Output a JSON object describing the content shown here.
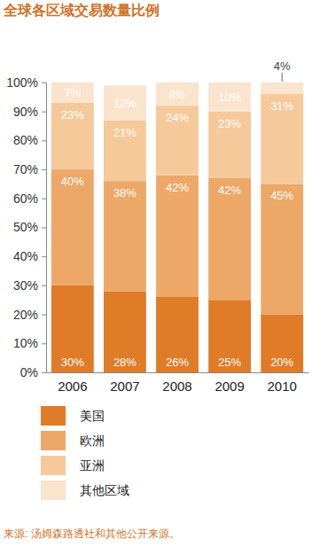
{
  "chart_data": {
    "type": "bar",
    "stacked": true,
    "data_labels": true,
    "grid": false,
    "legend": "bottom-left",
    "title": "全球各区域交易数量比例",
    "source": "来源: 汤姆森路透社和其他公开来源。",
    "categories": [
      "2006",
      "2007",
      "2008",
      "2009",
      "2010"
    ],
    "ylim": [
      0,
      100
    ],
    "yticks": [
      {
        "value": 0,
        "label": "0%"
      },
      {
        "value": 10,
        "label": "10%"
      },
      {
        "value": 20,
        "label": "20%"
      },
      {
        "value": 30,
        "label": "30%"
      },
      {
        "value": 40,
        "label": "40%"
      },
      {
        "value": 50,
        "label": "50%"
      },
      {
        "value": 60,
        "label": "60%"
      },
      {
        "value": 70,
        "label": "70%"
      },
      {
        "value": 80,
        "label": "80%"
      },
      {
        "value": 90,
        "label": "90%"
      },
      {
        "value": 100,
        "label": "100%"
      }
    ],
    "series": [
      {
        "name": "美国",
        "color": "#e07b28",
        "values": [
          30,
          28,
          26,
          25,
          20
        ],
        "value_labels": [
          "30%",
          "28%",
          "26%",
          "25%",
          "20%"
        ]
      },
      {
        "name": "欧洲",
        "color": "#eda867",
        "values": [
          40,
          38,
          42,
          42,
          45
        ],
        "value_labels": [
          "40%",
          "38%",
          "42%",
          "42%",
          "45%"
        ]
      },
      {
        "name": "亚洲",
        "color": "#f6c99b",
        "values": [
          23,
          21,
          24,
          23,
          31
        ],
        "value_labels": [
          "23%",
          "21%",
          "24%",
          "23%",
          "31%"
        ]
      },
      {
        "name": "其他区域",
        "color": "#fbe4cd",
        "values": [
          7,
          12,
          8,
          10,
          4
        ],
        "value_labels": [
          "7%",
          "12%",
          "8%",
          "10%",
          "4%"
        ]
      }
    ]
  }
}
